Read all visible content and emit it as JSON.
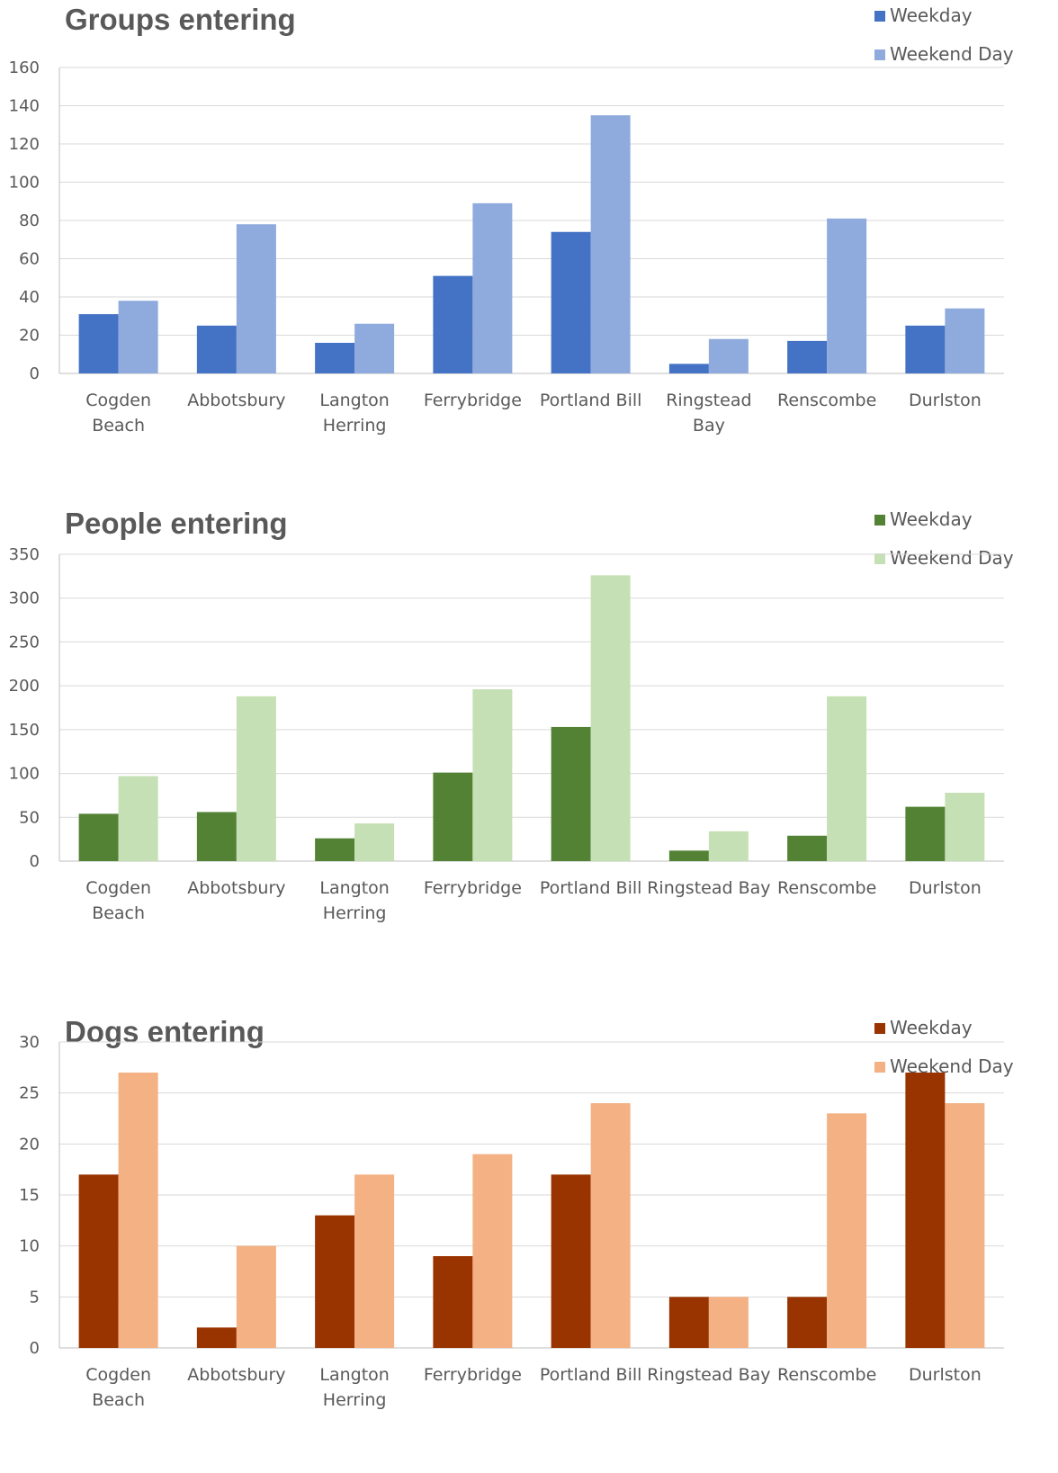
{
  "chart_data": [
    {
      "type": "bar",
      "title": "Groups entering",
      "categories": [
        [
          "Cogden",
          "Beach"
        ],
        [
          "Abbotsbury"
        ],
        [
          "Langton",
          "Herring"
        ],
        [
          "Ferrybridge"
        ],
        [
          "Portland Bill"
        ],
        [
          "Ringstead",
          "Bay"
        ],
        [
          "Renscombe"
        ],
        [
          "Durlston"
        ]
      ],
      "series": [
        {
          "name": "Weekday",
          "color": "#4472c4",
          "values": [
            31,
            25,
            16,
            51,
            74,
            5,
            17,
            25
          ]
        },
        {
          "name": "Weekend Day",
          "color": "#8faadc",
          "values": [
            38,
            78,
            26,
            89,
            135,
            18,
            81,
            34
          ]
        }
      ],
      "ylim": [
        0,
        160
      ],
      "yticks": [
        0,
        20,
        40,
        60,
        80,
        100,
        120,
        140,
        160
      ],
      "grid": true,
      "legend": "top-right"
    },
    {
      "type": "bar",
      "title": "People entering",
      "categories": [
        [
          "Cogden",
          "Beach"
        ],
        [
          "Abbotsbury"
        ],
        [
          "Langton",
          "Herring"
        ],
        [
          "Ferrybridge"
        ],
        [
          "Portland Bill"
        ],
        [
          "Ringstead Bay"
        ],
        [
          "Renscombe"
        ],
        [
          "Durlston"
        ]
      ],
      "series": [
        {
          "name": "Weekday",
          "color": "#548235",
          "values": [
            54,
            56,
            26,
            101,
            153,
            12,
            29,
            62
          ]
        },
        {
          "name": "Weekend Day",
          "color": "#c5e0b4",
          "values": [
            97,
            188,
            43,
            196,
            326,
            34,
            188,
            78
          ]
        }
      ],
      "ylim": [
        0,
        350
      ],
      "yticks": [
        0,
        50,
        100,
        150,
        200,
        250,
        300,
        350
      ],
      "grid": true,
      "legend": "top-right"
    },
    {
      "type": "bar",
      "title": "Dogs entering",
      "categories": [
        [
          "Cogden",
          "Beach"
        ],
        [
          "Abbotsbury"
        ],
        [
          "Langton",
          "Herring"
        ],
        [
          "Ferrybridge"
        ],
        [
          "Portland Bill"
        ],
        [
          "Ringstead Bay"
        ],
        [
          "Renscombe"
        ],
        [
          "Durlston"
        ]
      ],
      "series": [
        {
          "name": "Weekday",
          "color": "#993300",
          "values": [
            17,
            2,
            13,
            9,
            17,
            5,
            5,
            27
          ]
        },
        {
          "name": "Weekend Day",
          "color": "#f4b183",
          "values": [
            27,
            10,
            17,
            19,
            24,
            5,
            23,
            24
          ]
        }
      ],
      "ylim": [
        0,
        30
      ],
      "yticks": [
        0,
        5,
        10,
        15,
        20,
        25,
        30
      ],
      "grid": true,
      "legend": "top-right"
    }
  ]
}
